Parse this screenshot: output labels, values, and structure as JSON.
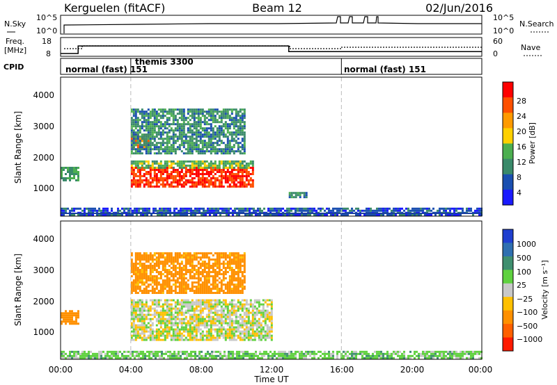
{
  "header": {
    "station": "Kerguelen (fitACF)",
    "beam": "Beam 12",
    "date": "02/Jun/2016"
  },
  "noise_panel": {
    "left_label": "N.Sky",
    "left_ticks": [
      "10^5",
      "10^0"
    ],
    "right_label": "N.Search",
    "right_ticks": [
      "10^5",
      "10^0"
    ]
  },
  "freq_panel": {
    "left_label_1": "Freq.",
    "left_label_2": "[MHz]",
    "left_ticks": [
      "18",
      "8"
    ],
    "right_label": "Nave",
    "right_ticks": [
      "60",
      "0"
    ]
  },
  "cpid_panel": {
    "label": "CPID",
    "modes": [
      "normal (fast) 151",
      "themis 3300",
      "normal (fast) 151"
    ]
  },
  "power_panel": {
    "ylabel": "Slant Range [km]",
    "yticks": [
      "1000",
      "2000",
      "3000",
      "4000"
    ],
    "colorbar_label": "Power [dB]",
    "colorbar_ticks": [
      "4",
      "8",
      "12",
      "16",
      "20",
      "24",
      "28"
    ],
    "colors": [
      "#1a1aff",
      "#1a4fb0",
      "#3a8a6a",
      "#4caf50",
      "#ffd000",
      "#ff9a00",
      "#ff5000",
      "#ff0000"
    ]
  },
  "velocity_panel": {
    "ylabel": "Slant Range [km]",
    "yticks": [
      "1000",
      "2000",
      "3000",
      "4000"
    ],
    "colorbar_label": "Velocity [m s⁻¹]",
    "colorbar_ticks": [
      "1000",
      "500",
      "100",
      "25",
      "−25",
      "−100",
      "−500",
      "−1000"
    ],
    "colors": [
      "#1f3fcf",
      "#2f6fb0",
      "#3f8f6f",
      "#5fd13f",
      "#c8c8c8",
      "#ffc000",
      "#ff9000",
      "#ff6000",
      "#ff1a00"
    ]
  },
  "time_axis": {
    "ticks": [
      "00:00",
      "04:00",
      "08:00",
      "12:00",
      "16:00",
      "20:00",
      "00:00"
    ],
    "label": "Time UT"
  },
  "chart_data": {
    "type": "heatmap",
    "x_unit": "hours UT",
    "xlim": [
      0,
      24
    ],
    "ylim_km": [
      180,
      4600
    ],
    "cpid_changes_hours": [
      4,
      16
    ],
    "frequency_mhz": [
      {
        "start": 0.0,
        "end": 1.0,
        "value": 9.5
      },
      {
        "start": 1.0,
        "end": 13.0,
        "value": 13.5
      },
      {
        "start": 13.0,
        "end": 24.0,
        "value": 10.5
      }
    ],
    "power_db": [
      {
        "t0": 0.0,
        "t1": 1.0,
        "r0": 1300,
        "r1": 1750,
        "v": 12
      },
      {
        "t0": 4.0,
        "t1": 11.0,
        "r0": 1150,
        "r1": 1750,
        "v": 28
      },
      {
        "t0": 4.0,
        "t1": 11.0,
        "r0": 1750,
        "r1": 1950,
        "v": 14
      },
      {
        "t0": 4.0,
        "t1": 5.0,
        "r0": 2400,
        "r1": 2800,
        "v": 24
      },
      {
        "t0": 4.0,
        "t1": 10.5,
        "r0": 2200,
        "r1": 3600,
        "v": 10
      },
      {
        "t0": 13.0,
        "t1": 14.0,
        "r0": 800,
        "r1": 950,
        "v": 10
      },
      {
        "t0": 0.0,
        "t1": 24.0,
        "r0": 200,
        "r1": 450,
        "v": 6
      }
    ],
    "velocity_ms": [
      {
        "t0": 0.0,
        "t1": 1.0,
        "r0": 1300,
        "r1": 1750,
        "v": -300
      },
      {
        "t0": 4.0,
        "t1": 12.0,
        "r0": 800,
        "r1": 2100,
        "v": 0
      },
      {
        "t0": 4.0,
        "t1": 10.5,
        "r0": 2300,
        "r1": 3600,
        "v": -150
      },
      {
        "t0": 0.0,
        "t1": 24.0,
        "r0": 200,
        "r1": 450,
        "v": 60
      }
    ]
  }
}
